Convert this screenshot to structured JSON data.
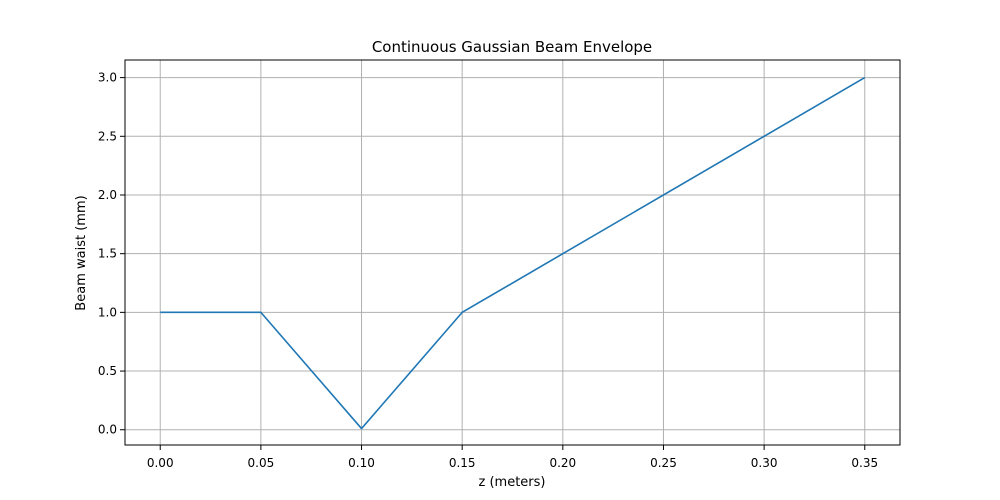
{
  "chart_data": {
    "type": "line",
    "title": "Continuous Gaussian Beam Envelope",
    "xlabel": "z (meters)",
    "ylabel": "Beam waist (mm)",
    "xlim": [
      -0.0175,
      0.3675
    ],
    "ylim": [
      -0.13,
      3.15
    ],
    "xticks": [
      0.0,
      0.05,
      0.1,
      0.15,
      0.2,
      0.25,
      0.3,
      0.35
    ],
    "xtick_labels": [
      "0.00",
      "0.05",
      "0.10",
      "0.15",
      "0.20",
      "0.25",
      "0.30",
      "0.35"
    ],
    "yticks": [
      0.0,
      0.5,
      1.0,
      1.5,
      2.0,
      2.5,
      3.0
    ],
    "ytick_labels": [
      "0.0",
      "0.5",
      "1.0",
      "1.5",
      "2.0",
      "2.5",
      "3.0"
    ],
    "grid": true,
    "series": [
      {
        "color": "#1f77b4",
        "x": [
          0.0,
          0.05,
          0.1,
          0.15,
          0.35
        ],
        "y": [
          1.0,
          1.0,
          0.01,
          1.0,
          3.0
        ]
      }
    ]
  }
}
